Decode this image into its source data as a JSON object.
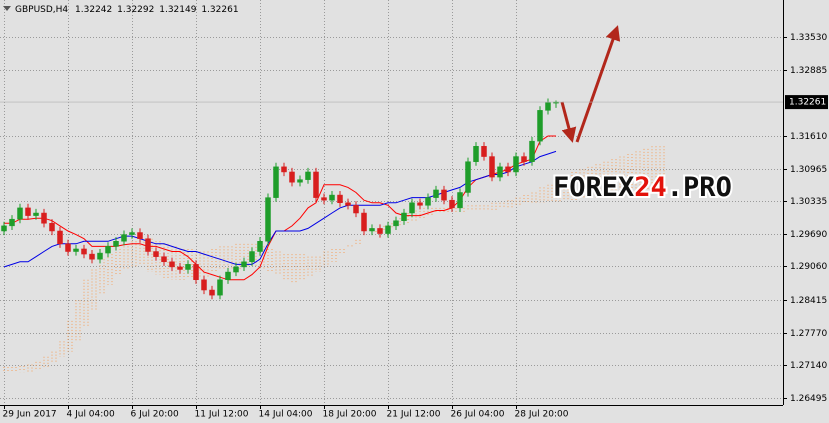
{
  "chart_data": {
    "type": "candlestick",
    "symbol": "GBPUSD,H4",
    "categories": [
      "29 Jun 2017",
      null,
      null,
      null,
      null,
      null,
      null,
      null,
      "4 Jul 04:00",
      null,
      null,
      null,
      null,
      null,
      null,
      null,
      "6 Jul 20:00",
      null,
      null,
      null,
      null,
      null,
      null,
      null,
      "11 Jul 12:00",
      null,
      null,
      null,
      null,
      null,
      null,
      null,
      "14 Jul 04:00",
      null,
      null,
      null,
      null,
      null,
      null,
      null,
      "18 Jul 20:00",
      null,
      null,
      null,
      null,
      null,
      null,
      null,
      "21 Jul 12:00",
      null,
      null,
      null,
      null,
      null,
      null,
      null,
      "26 Jul 04:00",
      null,
      null,
      null,
      null,
      null,
      null,
      null,
      "28 Jul 20:00",
      null,
      null,
      null,
      null,
      null,
      null,
      null,
      null,
      null,
      null,
      null,
      null,
      null,
      null,
      null,
      null,
      null,
      null
    ],
    "open": [
      1.2975,
      1.2985,
      1.2998,
      1.302,
      1.3005,
      1.301,
      1.299,
      1.2975,
      1.295,
      1.2935,
      1.294,
      1.293,
      1.292,
      1.2932,
      1.2945,
      1.2955,
      1.2968,
      1.2972,
      1.296,
      1.2935,
      1.2925,
      1.2915,
      1.2905,
      1.29,
      1.291,
      1.288,
      1.286,
      1.285,
      1.288,
      1.2895,
      1.2905,
      1.2915,
      1.2935,
      1.2955,
      1.304,
      1.31,
      1.309,
      1.307,
      1.3075,
      1.309,
      1.304,
      1.3035,
      1.3045,
      1.303,
      1.3025,
      1.301,
      1.2975,
      1.298,
      1.297,
      1.2985,
      1.2995,
      1.301,
      1.303,
      1.3025,
      1.304,
      1.3055,
      1.3035,
      1.302,
      1.305,
      1.311,
      1.314,
      1.312,
      1.308,
      1.31,
      1.309,
      1.312,
      1.311,
      1.315,
      1.321,
      1.32242,
      null,
      null,
      null,
      null,
      null,
      null,
      null,
      null,
      null,
      null,
      null,
      null,
      null
    ],
    "high": [
      1.2993,
      1.3006,
      1.3028,
      1.3028,
      1.3018,
      1.3018,
      1.2998,
      1.2983,
      1.2958,
      1.2948,
      1.2948,
      1.2938,
      1.294,
      1.2953,
      1.2963,
      1.2976,
      1.298,
      1.298,
      1.2968,
      1.2943,
      1.2933,
      1.2923,
      1.2913,
      1.2918,
      1.2918,
      1.2888,
      1.2868,
      1.2888,
      1.2903,
      1.2913,
      1.2923,
      1.2943,
      1.2963,
      1.3048,
      1.3108,
      1.3108,
      1.3098,
      1.3083,
      1.3098,
      1.3098,
      1.3048,
      1.3053,
      1.3053,
      1.3038,
      1.3033,
      1.3018,
      1.2988,
      1.2988,
      1.2993,
      1.3003,
      1.3018,
      1.3038,
      1.3038,
      1.3048,
      1.3063,
      1.3063,
      1.3043,
      1.3058,
      1.3118,
      1.3148,
      1.3148,
      1.3128,
      1.3108,
      1.3108,
      1.3128,
      1.3128,
      1.3158,
      1.3218,
      1.3233,
      1.32292,
      null,
      null,
      null,
      null,
      null,
      null,
      null,
      null,
      null,
      null,
      null,
      null,
      null
    ],
    "low": [
      1.2967,
      1.2977,
      1.299,
      1.2997,
      1.2997,
      1.2982,
      1.2967,
      1.2942,
      1.2927,
      1.2927,
      1.2922,
      1.2912,
      1.2912,
      1.2924,
      1.2937,
      1.2947,
      1.296,
      1.2952,
      1.2927,
      1.2917,
      1.2907,
      1.2897,
      1.2892,
      1.2892,
      1.2872,
      1.2852,
      1.2842,
      1.2842,
      1.2872,
      1.2887,
      1.2897,
      1.2907,
      1.2927,
      1.2947,
      1.3032,
      1.3082,
      1.3062,
      1.3062,
      1.3067,
      1.3032,
      1.3027,
      1.3027,
      1.3022,
      1.3017,
      1.3002,
      1.2967,
      1.2967,
      1.2962,
      1.2962,
      1.2977,
      1.2987,
      1.3002,
      1.3017,
      1.3017,
      1.3032,
      1.3027,
      1.3012,
      1.3012,
      1.3042,
      1.3102,
      1.3112,
      1.3072,
      1.3072,
      1.3082,
      1.3082,
      1.3102,
      1.3102,
      1.3142,
      1.3202,
      1.32149,
      null,
      null,
      null,
      null,
      null,
      null,
      null,
      null,
      null,
      null,
      null,
      null,
      null
    ],
    "close": [
      1.2985,
      1.2998,
      1.302,
      1.3005,
      1.301,
      1.299,
      1.2975,
      1.295,
      1.2935,
      1.294,
      1.293,
      1.292,
      1.2932,
      1.2945,
      1.2955,
      1.2968,
      1.2972,
      1.296,
      1.2935,
      1.2925,
      1.2915,
      1.2905,
      1.29,
      1.291,
      1.288,
      1.286,
      1.285,
      1.288,
      1.2895,
      1.2905,
      1.2915,
      1.2935,
      1.2955,
      1.304,
      1.31,
      1.309,
      1.307,
      1.3075,
      1.309,
      1.304,
      1.3035,
      1.3045,
      1.303,
      1.3025,
      1.301,
      1.2975,
      1.298,
      1.297,
      1.2985,
      1.2995,
      1.301,
      1.303,
      1.3025,
      1.304,
      1.3055,
      1.3035,
      1.302,
      1.305,
      1.311,
      1.314,
      1.312,
      1.308,
      1.31,
      1.309,
      1.312,
      1.311,
      1.315,
      1.321,
      1.3225,
      1.32261,
      null,
      null,
      null,
      null,
      null,
      null,
      null,
      null,
      null,
      null,
      null,
      null,
      null
    ],
    "up_color": "#1f9d2a",
    "down_color": "#d81e1e",
    "lines": [
      {
        "color": "#ff0000",
        "values": [
          1.299,
          1.299,
          1.2998,
          1.2998,
          1.3,
          1.3,
          1.2995,
          1.2985,
          1.2975,
          1.2968,
          1.296,
          1.2945,
          1.2945,
          1.2945,
          1.2945,
          1.2948,
          1.295,
          1.295,
          1.2945,
          1.2945,
          1.294,
          1.2935,
          1.2935,
          1.2925,
          1.291,
          1.2895,
          1.289,
          1.2885,
          1.288,
          1.288,
          1.288,
          1.289,
          1.2905,
          1.2945,
          1.2975,
          1.2975,
          1.2985,
          1.3,
          1.302,
          1.303,
          1.3065,
          1.3065,
          1.3065,
          1.306,
          1.305,
          1.3035,
          1.303,
          1.303,
          1.3025,
          1.301,
          1.3005,
          1.3005,
          1.3005,
          1.301,
          1.3015,
          1.3015,
          1.302,
          1.3035,
          1.306,
          1.3075,
          1.308,
          1.3085,
          1.309,
          1.3095,
          1.3105,
          1.311,
          1.3115,
          1.315,
          1.316,
          1.316,
          null,
          null,
          null,
          null,
          null,
          null,
          null,
          null,
          null,
          null,
          null,
          null,
          null
        ]
      },
      {
        "color": "#0000e6",
        "values": [
          1.2905,
          1.291,
          1.2915,
          1.2915,
          1.2925,
          1.2935,
          1.2945,
          1.295,
          1.295,
          1.295,
          1.2955,
          1.2955,
          1.2955,
          1.2955,
          1.296,
          1.2965,
          1.2965,
          1.296,
          1.2955,
          1.295,
          1.295,
          1.2945,
          1.294,
          1.2935,
          1.2935,
          1.293,
          1.2925,
          1.292,
          1.2915,
          1.291,
          1.291,
          1.291,
          1.292,
          1.295,
          1.2975,
          1.2975,
          1.2975,
          1.2975,
          1.298,
          1.299,
          1.3,
          1.301,
          1.302,
          1.3025,
          1.3025,
          1.3025,
          1.3025,
          1.3025,
          1.303,
          1.303,
          1.3035,
          1.304,
          1.304,
          1.304,
          1.3045,
          1.305,
          1.3055,
          1.306,
          1.307,
          1.3075,
          1.308,
          1.3085,
          1.3085,
          1.309,
          1.31,
          1.3105,
          1.311,
          1.312,
          1.3125,
          1.313,
          null,
          null,
          null,
          null,
          null,
          null,
          null,
          null,
          null,
          null,
          null,
          null,
          null
        ]
      }
    ],
    "cloud": {
      "color": "#f5a05a",
      "span_a": [
        1.271,
        1.271,
        1.2712,
        1.2715,
        1.272,
        1.273,
        1.274,
        1.276,
        1.28,
        1.284,
        1.288,
        1.29,
        1.292,
        1.293,
        1.294,
        1.2945,
        1.2955,
        1.296,
        1.296,
        1.2955,
        1.295,
        1.2945,
        1.294,
        1.294,
        1.2935,
        1.2935,
        1.294,
        1.2945,
        1.2945,
        1.295,
        1.295,
        1.295,
        1.2945,
        1.294,
        1.2935,
        1.293,
        1.293,
        1.293,
        1.2925,
        1.2925,
        1.2935,
        1.294,
        1.294,
        1.2945,
        1.295,
        1.2965,
        1.2975,
        1.2985,
        1.299,
        1.3,
        1.301,
        1.3015,
        1.302,
        1.302,
        1.302,
        1.302,
        1.302,
        1.302,
        1.3025,
        1.3025,
        1.3025,
        1.303,
        1.303,
        1.3035,
        1.304,
        1.3045,
        1.305,
        1.306,
        1.3065,
        1.307,
        1.308,
        1.309,
        1.3095,
        1.31,
        1.3105,
        1.311,
        1.3115,
        1.312,
        1.3125,
        1.313,
        1.3135,
        1.314,
        1.314
      ],
      "span_b": [
        1.27,
        1.27,
        1.27,
        1.27,
        1.2705,
        1.271,
        1.272,
        1.273,
        1.274,
        1.276,
        1.279,
        1.282,
        1.285,
        1.287,
        1.289,
        1.29,
        1.2905,
        1.291,
        1.2895,
        1.289,
        1.288,
        1.288,
        1.288,
        1.2885,
        1.2885,
        1.2885,
        1.2895,
        1.29,
        1.29,
        1.29,
        1.2905,
        1.2905,
        1.29,
        1.2895,
        1.289,
        1.288,
        1.2875,
        1.288,
        1.2885,
        1.2895,
        1.2905,
        1.2915,
        1.293,
        1.295,
        1.296,
        1.2965,
        1.297,
        1.2975,
        1.298,
        1.2985,
        1.299,
        1.2995,
        1.3,
        1.3005,
        1.301,
        1.301,
        1.301,
        1.301,
        1.3015,
        1.3015,
        1.3015,
        1.3015,
        1.302,
        1.302,
        1.3025,
        1.303,
        1.303,
        1.303,
        1.303,
        1.303,
        1.3035,
        1.3035,
        1.304,
        1.304,
        1.304,
        1.3045,
        1.3045,
        1.305,
        1.305,
        1.305,
        1.3055,
        1.3055,
        1.3055
      ]
    },
    "ylim": [
      1.2636,
      1.3425
    ],
    "yticks": [
      {
        "value": 1.3353,
        "label": "1.33530"
      },
      1.32885,
      {
        "value": 1.3161,
        "label": "1.31610"
      },
      1.30965,
      1.30335,
      {
        "value": 1.2969,
        "label": "1.29690"
      },
      {
        "value": 1.2906,
        "label": "1.29060"
      },
      1.28415,
      {
        "value": 1.2777,
        "label": "1.27770"
      },
      {
        "value": 1.2714,
        "label": "1.27140"
      },
      1.26495
    ],
    "grid": true,
    "watermark": [
      "FOREX",
      "24",
      ".PRO"
    ]
  }
}
